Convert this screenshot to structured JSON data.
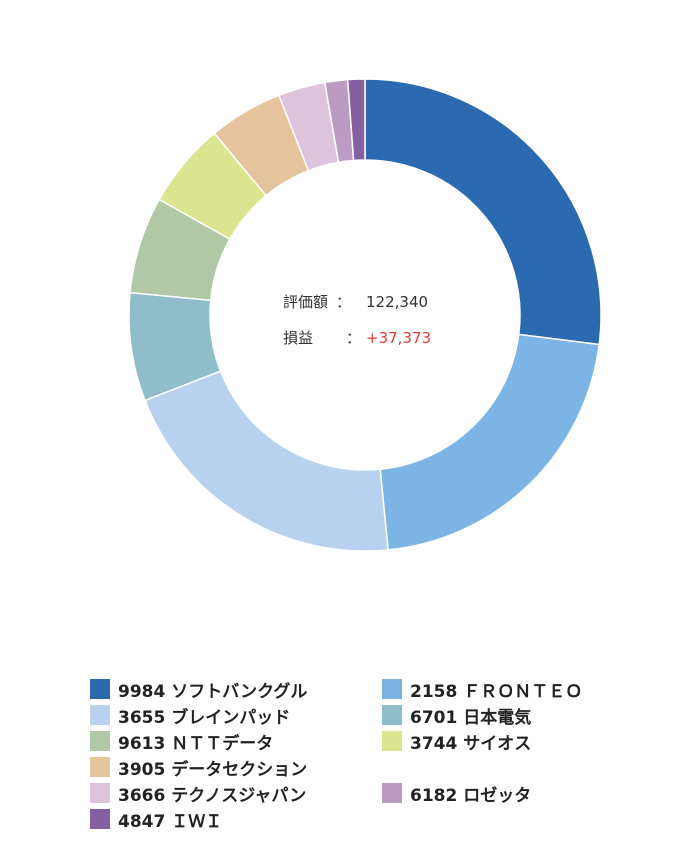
{
  "chart_data": {
    "type": "pie",
    "style": "donut",
    "categories": [
      "9984 ソフトバンクグル",
      "2158 ＦＲＯＮＴＥＯ",
      "3655 ブレインパッド",
      "6701 日本電気",
      "9613 ＮＴＴデータ",
      "3744 サイオス",
      "3905 データセクション",
      "3666 テクノスジャパン",
      "6182 ロゼッタ",
      "4847 ＩＷＩ"
    ],
    "values": [
      27.7,
      22.0,
      21.2,
      7.6,
      6.8,
      6.0,
      5.2,
      3.3,
      1.6,
      1.2
    ],
    "colors": [
      "#2b69b1",
      "#7cb5e5",
      "#b7d1ef",
      "#8fbdc9",
      "#b1c8a6",
      "#dbe58f",
      "#e5c49d",
      "#dec3dc",
      "#bc9bc3",
      "#8460a0"
    ],
    "legend_position": "bottom"
  },
  "center": {
    "valuation_label": "評価額",
    "valuation_value": "122,340",
    "pl_label": "損益",
    "pl_value": "+37,373",
    "pl_color": "#e53935"
  }
}
